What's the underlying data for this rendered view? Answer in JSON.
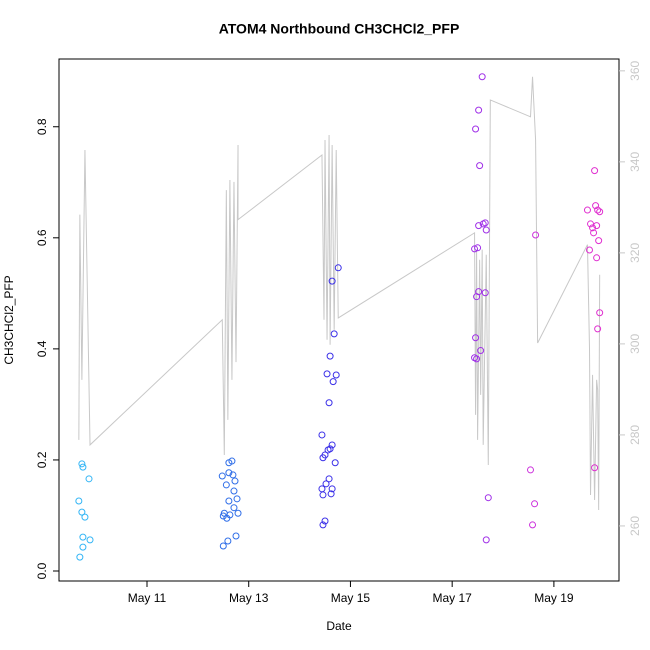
{
  "chart_data": {
    "type": "scatter",
    "title": "ATOM4 Northbound CH3CHCl2_PFP",
    "xlabel": "Date",
    "ylabel": "CH3CHCl2_PFP",
    "xlim": [
      9.27,
      20.28
    ],
    "xticks": [
      {
        "value": 11,
        "label": "May 11"
      },
      {
        "value": 13,
        "label": "May 13"
      },
      {
        "value": 15,
        "label": "May 15"
      },
      {
        "value": 17,
        "label": "May 17"
      },
      {
        "value": 19,
        "label": "May 19"
      }
    ],
    "ylim": [
      -0.018,
      0.922
    ],
    "yticks": [
      {
        "value": 0,
        "label": "0.0"
      },
      0.2,
      0.4,
      0.6,
      0.8
    ],
    "y2lim": [
      247.9,
      362.6
    ],
    "y2ticks": [
      260,
      280,
      300,
      320,
      340,
      360
    ],
    "y2_color": "#c8c8c8",
    "series": [
      {
        "type": "scatter",
        "x": [
          9.72,
          9.74,
          9.86,
          9.66,
          9.72,
          9.78,
          9.74,
          9.88,
          9.74,
          9.68,
          12.48,
          12.61,
          12.67,
          12.61,
          12.69,
          12.73,
          12.56,
          12.71,
          12.77,
          12.61,
          12.71,
          12.52,
          12.5,
          12.79,
          12.63,
          12.57,
          12.75,
          12.59,
          12.5,
          14.76,
          14.64,
          14.68,
          14.6,
          14.54,
          14.72,
          14.66,
          14.58,
          14.44,
          14.64,
          14.6,
          14.56,
          14.5,
          14.46,
          14.7,
          14.58,
          14.52,
          14.44,
          14.64,
          14.46,
          14.62,
          14.5,
          14.46,
          17.59,
          17.46,
          17.52,
          17.54,
          17.52,
          17.61,
          17.67,
          17.65,
          17.44,
          17.5,
          17.52,
          17.48,
          17.65,
          17.46,
          17.56,
          17.44,
          17.48,
          17.71,
          17.67,
          18.64,
          18.54,
          18.62,
          18.58,
          19.8,
          19.82,
          19.86,
          19.66,
          19.9,
          19.72,
          19.76,
          19.84,
          19.78,
          19.88,
          19.7,
          19.84,
          19.9,
          19.86,
          19.8
        ],
        "values": [
          0.193,
          0.187,
          0.166,
          0.126,
          0.106,
          0.097,
          0.061,
          0.056,
          0.043,
          0.025,
          0.171,
          0.177,
          0.198,
          0.195,
          0.173,
          0.162,
          0.155,
          0.144,
          0.13,
          0.126,
          0.114,
          0.104,
          0.099,
          0.104,
          0.101,
          0.095,
          0.063,
          0.054,
          0.045,
          0.546,
          0.522,
          0.427,
          0.387,
          0.355,
          0.353,
          0.341,
          0.303,
          0.245,
          0.227,
          0.22,
          0.218,
          0.209,
          0.204,
          0.195,
          0.166,
          0.157,
          0.148,
          0.148,
          0.137,
          0.139,
          0.09,
          0.083,
          0.89,
          0.796,
          0.83,
          0.73,
          0.622,
          0.625,
          0.614,
          0.627,
          0.58,
          0.582,
          0.503,
          0.494,
          0.501,
          0.42,
          0.397,
          0.384,
          0.382,
          0.132,
          0.056,
          0.605,
          0.182,
          0.121,
          0.083,
          0.721,
          0.658,
          0.65,
          0.65,
          0.647,
          0.625,
          0.618,
          0.622,
          0.609,
          0.595,
          0.578,
          0.564,
          0.465,
          0.436,
          0.186
        ],
        "colors": [
          "#33b5f5",
          "#33b5f5",
          "#33b5f5",
          "#33b5f5",
          "#33b5f5",
          "#33b5f5",
          "#33b5f5",
          "#33b5f5",
          "#33b5f5",
          "#33b5f5",
          "#2f6ee8",
          "#2f6ee8",
          "#2f6ee8",
          "#2f6ee8",
          "#2f6ee8",
          "#2f6ee8",
          "#2f6ee8",
          "#2f6ee8",
          "#2f6ee8",
          "#2f6ee8",
          "#2f6ee8",
          "#2f6ee8",
          "#2f6ee8",
          "#2f6ee8",
          "#2f6ee8",
          "#2f6ee8",
          "#2f6ee8",
          "#2f6ee8",
          "#2f6ee8",
          "#3a2fe8",
          "#3a2fe8",
          "#3a2fe8",
          "#3a2fe8",
          "#3a2fe8",
          "#3a2fe8",
          "#3a2fe8",
          "#3a2fe8",
          "#3a2fe8",
          "#3a2fe8",
          "#3a2fe8",
          "#3a2fe8",
          "#3a2fe8",
          "#3a2fe8",
          "#3a2fe8",
          "#3a2fe8",
          "#3a2fe8",
          "#3a2fe8",
          "#3a2fe8",
          "#3a2fe8",
          "#3a2fe8",
          "#3a2fe8",
          "#3a2fe8",
          "#a030e8",
          "#a030e8",
          "#a030e8",
          "#a030e8",
          "#a030e8",
          "#a030e8",
          "#a030e8",
          "#a030e8",
          "#a030e8",
          "#a030e8",
          "#a030e8",
          "#a030e8",
          "#a030e8",
          "#a030e8",
          "#a030e8",
          "#a030e8",
          "#a030e8",
          "#a030e8",
          "#a030e8",
          "#cc30dc",
          "#cc30dc",
          "#cc30dc",
          "#cc30dc",
          "#e030d0",
          "#e030d0",
          "#e030d0",
          "#e030d0",
          "#e030d0",
          "#e030d0",
          "#e030d0",
          "#e030d0",
          "#e030d0",
          "#e030d0",
          "#e030d0",
          "#e030d0",
          "#e030d0",
          "#e030d0",
          "#e030d0"
        ]
      },
      {
        "type": "line",
        "axis": "y2",
        "color": "#c8c8c8",
        "x": [
          9.66,
          9.68,
          9.72,
          9.78,
          9.88,
          12.48,
          12.52,
          12.56,
          12.59,
          12.63,
          12.67,
          12.71,
          12.75,
          12.79,
          12.79,
          14.44,
          14.48,
          14.5,
          14.54,
          14.58,
          14.6,
          14.64,
          14.68,
          14.72,
          14.76,
          17.44,
          17.46,
          17.48,
          17.5,
          17.54,
          17.56,
          17.59,
          17.61,
          17.67,
          17.71,
          17.75,
          18.54,
          18.58,
          18.64,
          18.68,
          19.66,
          19.7,
          19.72,
          19.76,
          19.8,
          19.84,
          19.86,
          19.88,
          19.9
        ],
        "values": [
          278.9,
          328.4,
          292.1,
          342.6,
          277.8,
          305.3,
          275.6,
          333.8,
          283.3,
          336.0,
          292.1,
          335.6,
          296.0,
          343.7,
          327.3,
          341.5,
          305.3,
          344.8,
          300.9,
          345.9,
          299.8,
          343.7,
          303.1,
          342.6,
          305.7,
          324.4,
          284.4,
          320.7,
          278.9,
          318.5,
          288.8,
          320.7,
          277.8,
          319.6,
          273.4,
          353.6,
          349.9,
          358.7,
          344.8,
          300.2,
          321.8,
          299.1,
          266.8,
          293.2,
          265.7,
          292.1,
          289.9,
          263.5,
          315.2
        ]
      }
    ]
  }
}
